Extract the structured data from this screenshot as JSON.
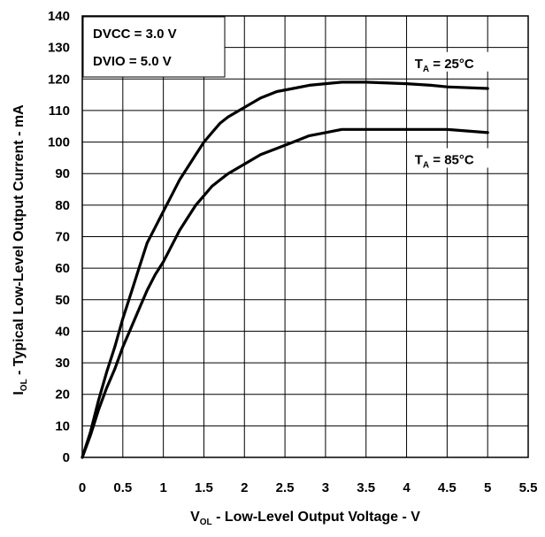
{
  "chart_data": {
    "type": "line",
    "title": "",
    "xlabel": {
      "main": "V",
      "sub": "OL",
      "rest": " - Low-Level Output Voltage - V"
    },
    "ylabel": {
      "main": "I",
      "sub": "OL",
      "rest": " - Typical Low-Level Output Current - mA"
    },
    "xlim": [
      0,
      5.5
    ],
    "ylim": [
      0,
      140
    ],
    "xticks": [
      "0",
      "0.5",
      "1",
      "1.5",
      "2",
      "2.5",
      "3",
      "3.5",
      "4",
      "4.5",
      "5",
      "5.5"
    ],
    "yticks": [
      "0",
      "10",
      "20",
      "30",
      "40",
      "50",
      "60",
      "70",
      "80",
      "90",
      "100",
      "110",
      "120",
      "130",
      "140"
    ],
    "grid": true,
    "legend_box": {
      "line1": "DVCC = 3.0 V",
      "line2": "DVIO = 5.0 V"
    },
    "series": [
      {
        "name": "T_A = 25°C",
        "label": {
          "main": "T",
          "sub": "A",
          "rest": " = 25°C"
        },
        "x": [
          0,
          0.1,
          0.2,
          0.3,
          0.4,
          0.5,
          0.6,
          0.7,
          0.8,
          0.9,
          1.0,
          1.1,
          1.2,
          1.3,
          1.4,
          1.5,
          1.6,
          1.7,
          1.8,
          2.0,
          2.2,
          2.4,
          2.6,
          2.8,
          3.0,
          3.2,
          3.5,
          4.0,
          4.3,
          4.5,
          5.0
        ],
        "y": [
          0,
          8,
          18,
          27,
          35,
          44,
          52,
          60,
          68,
          73,
          78,
          83,
          88,
          92,
          96,
          100,
          103,
          106,
          108,
          111,
          114,
          116,
          117,
          118,
          118.5,
          119,
          119,
          118.5,
          118,
          117.5,
          117
        ]
      },
      {
        "name": "T_A = 85°C",
        "label": {
          "main": "T",
          "sub": "A",
          "rest": " = 85°C"
        },
        "x": [
          0,
          0.1,
          0.2,
          0.3,
          0.4,
          0.5,
          0.6,
          0.7,
          0.8,
          0.9,
          1.0,
          1.1,
          1.2,
          1.3,
          1.4,
          1.5,
          1.6,
          1.7,
          1.8,
          2.0,
          2.2,
          2.4,
          2.6,
          2.8,
          3.0,
          3.2,
          3.5,
          4.0,
          4.5,
          5.0
        ],
        "y": [
          0,
          7,
          15,
          22,
          28,
          35,
          41,
          47,
          53,
          58,
          62,
          67,
          72,
          76,
          80,
          83,
          86,
          88,
          90,
          93,
          96,
          98,
          100,
          102,
          103,
          104,
          104,
          104,
          104,
          103
        ]
      }
    ]
  }
}
